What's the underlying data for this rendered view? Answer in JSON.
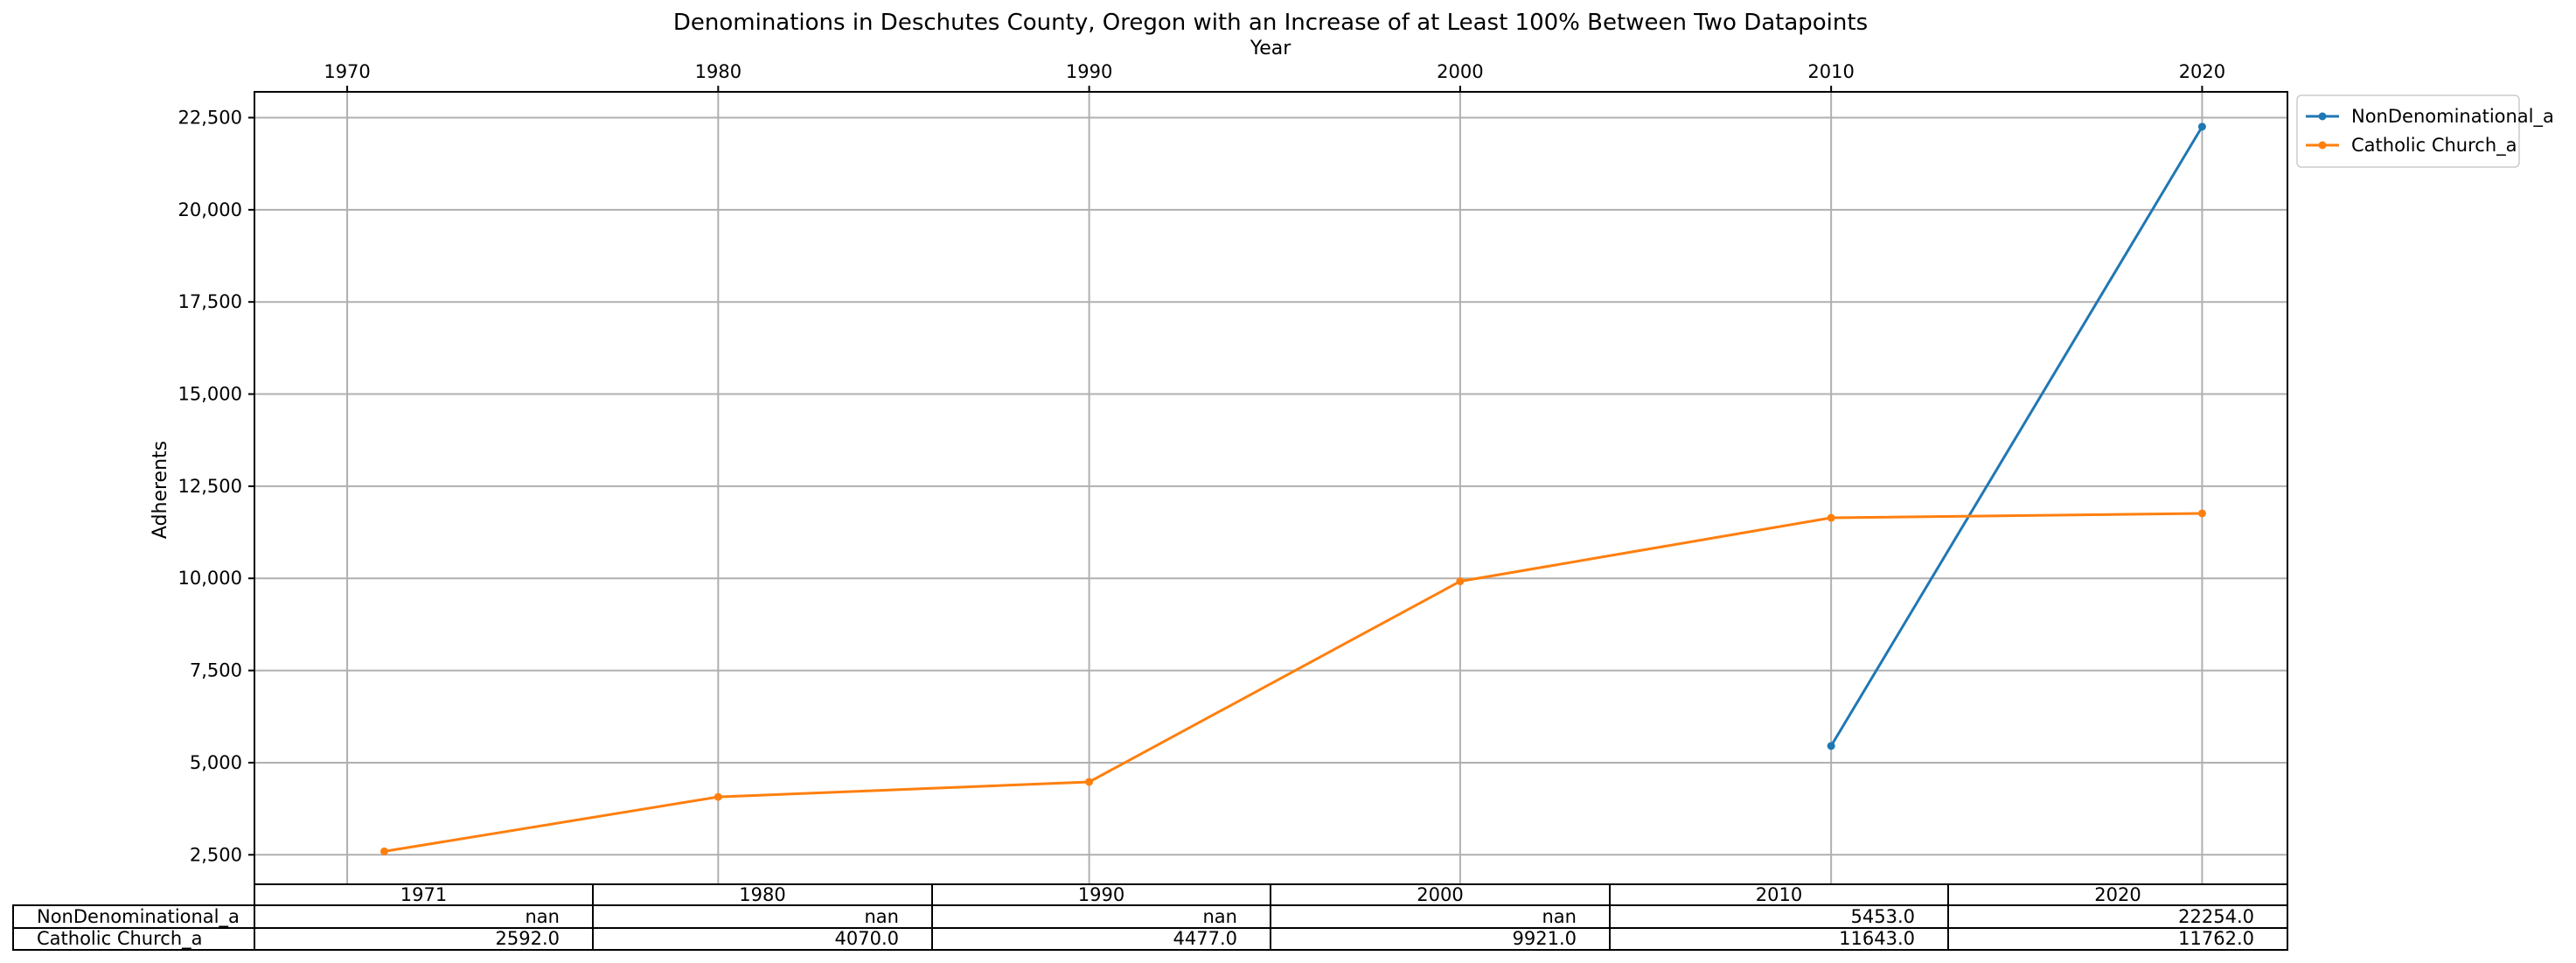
{
  "chart_data": {
    "type": "line",
    "title": "Denominations in Deschutes County, Oregon with an Increase of at Least 100% Between Two Datapoints",
    "xlabel": "Year",
    "ylabel": "Adherents",
    "xlim": [
      1967.5,
      2022.3
    ],
    "ylim": [
      1700,
      23200
    ],
    "x_ticks": [
      1970,
      1980,
      1990,
      2000,
      2010,
      2020
    ],
    "y_ticks": [
      2500,
      5000,
      7500,
      10000,
      12500,
      15000,
      17500,
      20000,
      22500
    ],
    "y_tick_labels": [
      "2,500",
      "5,000",
      "7,500",
      "10,000",
      "12,500",
      "15,000",
      "17,500",
      "20,000",
      "22,500"
    ],
    "grid": true,
    "legend_position": "outside-top-right",
    "series": [
      {
        "name": "NonDenominational_a",
        "color": "#1f77b4",
        "x": [
          1971,
          1980,
          1990,
          2000,
          2010,
          2020
        ],
        "y": [
          null,
          null,
          null,
          null,
          5453,
          22254
        ]
      },
      {
        "name": "Catholic Church_a",
        "color": "#ff7f0e",
        "x": [
          1971,
          1980,
          1990,
          2000,
          2010,
          2020
        ],
        "y": [
          2592,
          4070,
          4477,
          9921,
          11643,
          11762
        ]
      }
    ],
    "table": {
      "col_labels": [
        "1971",
        "1980",
        "1990",
        "2000",
        "2010",
        "2020"
      ],
      "rows": [
        {
          "label": "NonDenominational_a",
          "cells": [
            "nan",
            "nan",
            "nan",
            "nan",
            "5453.0",
            "22254.0"
          ]
        },
        {
          "label": "Catholic Church_a",
          "cells": [
            "2592.0",
            "4070.0",
            "4477.0",
            "9921.0",
            "11643.0",
            "11762.0"
          ]
        }
      ]
    }
  }
}
